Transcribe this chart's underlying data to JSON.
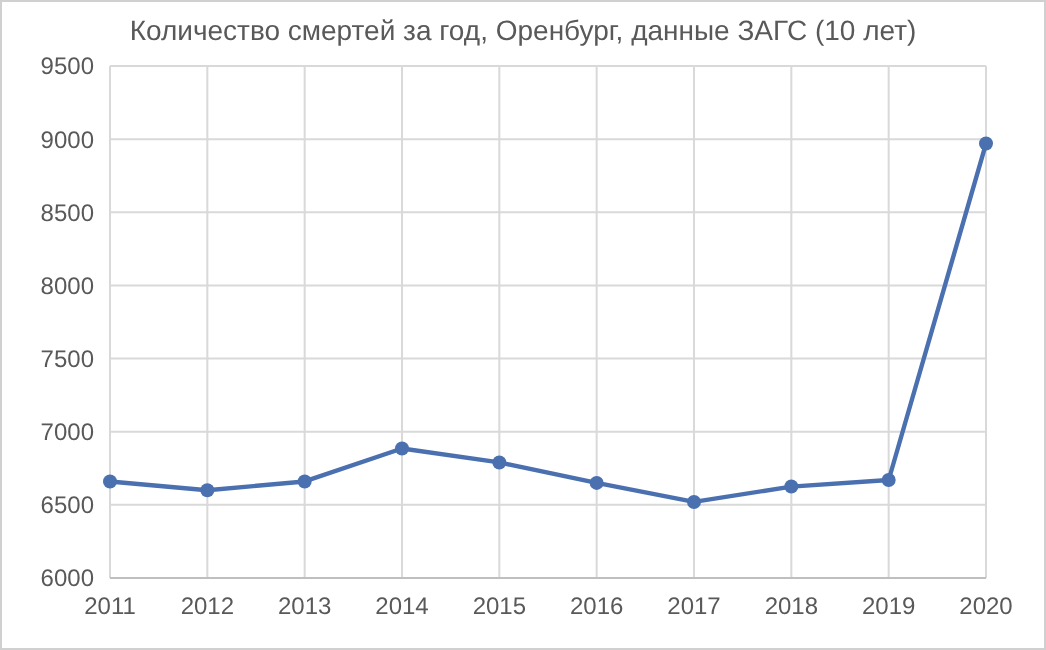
{
  "chart_data": {
    "type": "line",
    "title": "Количество смертей за год, Оренбург, данные ЗАГС (10 лет)",
    "x": [
      2011,
      2012,
      2013,
      2014,
      2015,
      2016,
      2017,
      2018,
      2019,
      2020
    ],
    "series": [
      {
        "color": "#4a70b0",
        "values": [
          6660,
          6600,
          6660,
          6885,
          6790,
          6650,
          6520,
          6625,
          6670,
          8970
        ]
      }
    ],
    "xlim": [
      2011,
      2020
    ],
    "xticks": [
      2011,
      2012,
      2013,
      2014,
      2015,
      2016,
      2017,
      2018,
      2019,
      2020
    ],
    "ylim": [
      6000,
      9500
    ],
    "yticks": [
      6000,
      6500,
      7000,
      7500,
      8000,
      8500,
      9000,
      9500
    ],
    "grid": true,
    "marker": "circle",
    "line_style": "solid"
  }
}
